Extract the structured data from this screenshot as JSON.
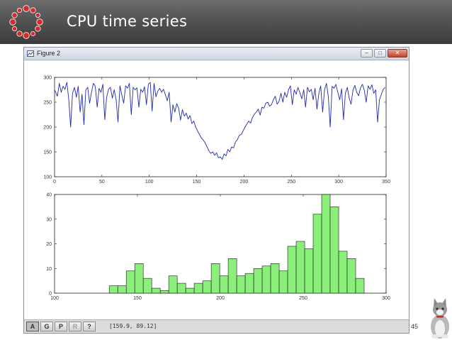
{
  "slide": {
    "title": "CPU time series",
    "page_number": "45"
  },
  "window": {
    "title": "Figure 2",
    "background_text_1": "",
    "background_text_2": "",
    "controls": {
      "minimize": "–",
      "maximize": "□",
      "close": "✕"
    }
  },
  "toolbar": {
    "buttons": [
      "A",
      "G",
      "P",
      "R",
      "?"
    ],
    "coordinates": "[159.9, 89.12]"
  },
  "colors": {
    "line": "#1f2aa8",
    "bar_fill": "#8af07a",
    "bar_stroke": "#1a1a1a",
    "header_bg": "#555555",
    "logo": "#d42a2a"
  },
  "chart_data": [
    {
      "type": "line",
      "title": "",
      "xlabel": "",
      "ylabel": "",
      "xlim": [
        0,
        350
      ],
      "ylim": [
        100,
        300
      ],
      "xticks": [
        0,
        50,
        100,
        150,
        200,
        250,
        300,
        350
      ],
      "yticks": [
        100,
        150,
        200,
        250,
        300
      ],
      "x": [
        0,
        3,
        5,
        7,
        9,
        11,
        13,
        15,
        17,
        19,
        21,
        23,
        25,
        27,
        29,
        31,
        33,
        35,
        37,
        39,
        41,
        43,
        45,
        47,
        49,
        51,
        53,
        55,
        57,
        59,
        61,
        63,
        65,
        67,
        69,
        71,
        73,
        75,
        77,
        79,
        81,
        83,
        85,
        87,
        89,
        91,
        93,
        95,
        97,
        99,
        101,
        103,
        105,
        107,
        109,
        111,
        113,
        115,
        117,
        119,
        121,
        123,
        125,
        127,
        129,
        131,
        133,
        135,
        137,
        139,
        141,
        143,
        145,
        147,
        149,
        151,
        153,
        155,
        157,
        159,
        161,
        163,
        165,
        167,
        169,
        171,
        173,
        175,
        177,
        179,
        181,
        183,
        185,
        187,
        189,
        191,
        193,
        195,
        197,
        199,
        201,
        203,
        205,
        207,
        209,
        211,
        213,
        215,
        217,
        219,
        221,
        223,
        225,
        227,
        229,
        231,
        233,
        235,
        237,
        239,
        241,
        243,
        245,
        247,
        249,
        251,
        253,
        255,
        257,
        259,
        261,
        263,
        265,
        267,
        269,
        271,
        273,
        275,
        277,
        279,
        281,
        283,
        285,
        287,
        289,
        291,
        293,
        295,
        297,
        299,
        301,
        303,
        305,
        307,
        309,
        311,
        313,
        315,
        317,
        319,
        321,
        323,
        325,
        327,
        329,
        331,
        333,
        335,
        337,
        339,
        341,
        343,
        345,
        347,
        349
      ],
      "y": [
        275,
        262,
        288,
        270,
        282,
        276,
        290,
        255,
        200,
        268,
        280,
        260,
        282,
        230,
        266,
        205,
        275,
        280,
        248,
        270,
        288,
        282,
        240,
        278,
        270,
        286,
        215,
        260,
        276,
        280,
        258,
        275,
        255,
        210,
        283,
        265,
        248,
        283,
        278,
        288,
        225,
        280,
        275,
        279,
        240,
        276,
        270,
        281,
        245,
        286,
        290,
        232,
        288,
        261,
        272,
        278,
        270,
        276,
        265,
        253,
        270,
        210,
        245,
        230,
        247,
        238,
        214,
        235,
        222,
        228,
        216,
        223,
        207,
        212,
        200,
        192,
        185,
        178,
        174,
        168,
        160,
        152,
        147,
        150,
        143,
        148,
        138,
        140,
        135,
        146,
        142,
        155,
        150,
        160,
        158,
        170,
        175,
        183,
        185,
        192,
        200,
        206,
        212,
        208,
        220,
        226,
        230,
        236,
        224,
        240,
        238,
        248,
        250,
        242,
        245,
        255,
        262,
        246,
        252,
        268,
        250,
        270,
        260,
        275,
        283,
        245,
        275,
        266,
        280,
        269,
        257,
        275,
        240,
        280,
        271,
        276,
        255,
        278,
        236,
        268,
        283,
        230,
        275,
        288,
        262,
        200,
        282,
        278,
        286,
        270,
        255,
        277,
        215,
        268,
        280,
        258,
        246,
        274,
        284,
        270,
        263,
        279,
        286,
        274,
        250,
        283,
        276,
        285,
        268,
        275,
        210,
        255,
        266,
        276,
        280
      ]
    },
    {
      "type": "bar",
      "title": "",
      "xlabel": "",
      "ylabel": "",
      "xlim": [
        100,
        300
      ],
      "ylim": [
        0,
        40
      ],
      "xticks": [
        100,
        150,
        200,
        250,
        300
      ],
      "yticks": [
        0,
        10,
        20,
        30,
        40
      ],
      "bin_width": 5.125,
      "bin_starts": [
        133,
        138.125,
        143.25,
        148.375,
        153.5,
        158.625,
        163.75,
        168.875,
        174,
        179.125,
        184.25,
        189.375,
        194.5,
        199.625,
        204.75,
        209.875,
        215,
        220.125,
        225.25,
        230.375,
        235.5,
        240.625,
        245.75,
        250.875,
        256,
        261.125,
        266.25,
        271.375,
        276.5,
        281.625,
        286.75
      ],
      "values": [
        3,
        3,
        9,
        12,
        6,
        2,
        1,
        7,
        4,
        2,
        4,
        5,
        12,
        7,
        14,
        7,
        8,
        10,
        11,
        12,
        9,
        19,
        21,
        18,
        32,
        40,
        35,
        17,
        14,
        6,
        0
      ]
    }
  ]
}
